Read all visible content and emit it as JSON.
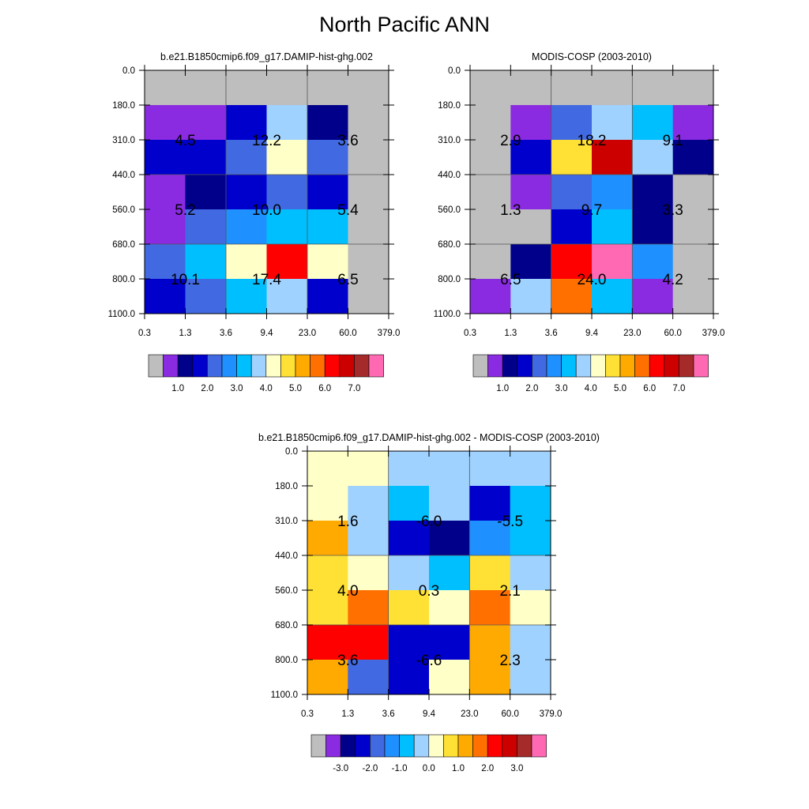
{
  "title": "North Pacific ANN",
  "colors": {
    "missing": "#BEBEBE",
    "grid": "#555555",
    "axis": "#000000",
    "palette": [
      "#BEBEBE",
      "#8A2BE2",
      "#00008B",
      "#0000CD",
      "#4169E1",
      "#1E90FF",
      "#00BFFF",
      "#A0D2FF",
      "#FFFFC8",
      "#FFE135",
      "#FFAA00",
      "#FF7000",
      "#FF0000",
      "#CD0000",
      "#A52A2A",
      "#FF69B4"
    ]
  },
  "chart_data": [
    {
      "type": "heatmap",
      "title": "b.e21.B1850cmip6.f09_g17.DAMIP-hist-ghg.002",
      "xticks": [
        "0.3",
        "1.3",
        "3.6",
        "9.4",
        "23.0",
        "60.0",
        "379.0"
      ],
      "yticks": [
        "0.0",
        "180.0",
        "310.0",
        "440.0",
        "560.0",
        "680.0",
        "800.0",
        "1100.0"
      ],
      "cells": [
        [
          0,
          0,
          0,
          0,
          0,
          0
        ],
        [
          1,
          1,
          3,
          7,
          2,
          0
        ],
        [
          3,
          3,
          4,
          8,
          4,
          0
        ],
        [
          1,
          2,
          3,
          4,
          3,
          0
        ],
        [
          1,
          4,
          5,
          6,
          6,
          0
        ],
        [
          4,
          6,
          8,
          12,
          8,
          0
        ],
        [
          3,
          4,
          6,
          7,
          3,
          0
        ]
      ],
      "annotations": [
        {
          "row": 1,
          "col": 0,
          "text": "4.5"
        },
        {
          "row": 1,
          "col": 2,
          "text": "12.2"
        },
        {
          "row": 1,
          "col": 4,
          "text": "3.6"
        },
        {
          "row": 3,
          "col": 0,
          "text": "5.2"
        },
        {
          "row": 3,
          "col": 2,
          "text": "10.0"
        },
        {
          "row": 3,
          "col": 4,
          "text": "5.4"
        },
        {
          "row": 5,
          "col": 0,
          "text": "10.1"
        },
        {
          "row": 5,
          "col": 2,
          "text": "17.4"
        },
        {
          "row": 5,
          "col": 4,
          "text": "6.5"
        }
      ],
      "colorbar": {
        "labels": [
          "1.0",
          "2.0",
          "3.0",
          "4.0",
          "5.0",
          "6.0",
          "7.0"
        ]
      }
    },
    {
      "type": "heatmap",
      "title": "MODIS-COSP (2003-2010)",
      "xticks": [
        "0.3",
        "1.3",
        "3.6",
        "9.4",
        "23.0",
        "60.0",
        "379.0"
      ],
      "yticks": [
        "0.0",
        "180.0",
        "310.0",
        "440.0",
        "560.0",
        "680.0",
        "800.0",
        "1100.0"
      ],
      "cells": [
        [
          0,
          0,
          0,
          0,
          0,
          0
        ],
        [
          0,
          1,
          4,
          7,
          6,
          1
        ],
        [
          0,
          3,
          9,
          13,
          7,
          2
        ],
        [
          0,
          1,
          4,
          5,
          2,
          0
        ],
        [
          0,
          0,
          3,
          6,
          2,
          0
        ],
        [
          0,
          2,
          12,
          15,
          5,
          0
        ],
        [
          1,
          7,
          11,
          6,
          1,
          0
        ]
      ],
      "annotations": [
        {
          "row": 1,
          "col": 0,
          "text": "2.9"
        },
        {
          "row": 1,
          "col": 2,
          "text": "18.2"
        },
        {
          "row": 1,
          "col": 4,
          "text": "9.1"
        },
        {
          "row": 3,
          "col": 0,
          "text": "1.3"
        },
        {
          "row": 3,
          "col": 2,
          "text": "9.7"
        },
        {
          "row": 3,
          "col": 4,
          "text": "3.3"
        },
        {
          "row": 5,
          "col": 0,
          "text": "6.5"
        },
        {
          "row": 5,
          "col": 2,
          "text": "24.0"
        },
        {
          "row": 5,
          "col": 4,
          "text": "4.2"
        }
      ],
      "colorbar": {
        "labels": [
          "1.0",
          "2.0",
          "3.0",
          "4.0",
          "5.0",
          "6.0",
          "7.0"
        ]
      }
    },
    {
      "type": "heatmap",
      "title": "b.e21.B1850cmip6.f09_g17.DAMIP-hist-ghg.002 - MODIS-COSP (2003-2010)",
      "xticks": [
        "0.3",
        "1.3",
        "3.6",
        "9.4",
        "23.0",
        "60.0",
        "379.0"
      ],
      "yticks": [
        "0.0",
        "180.0",
        "310.0",
        "440.0",
        "560.0",
        "680.0",
        "800.0",
        "1100.0"
      ],
      "cells": [
        [
          8,
          8,
          7,
          7,
          7,
          7
        ],
        [
          8,
          7,
          6,
          7,
          3,
          6
        ],
        [
          10,
          7,
          3,
          2,
          5,
          6
        ],
        [
          9,
          8,
          7,
          6,
          9,
          7
        ],
        [
          9,
          11,
          9,
          8,
          11,
          8
        ],
        [
          12,
          12,
          3,
          3,
          10,
          7
        ],
        [
          10,
          4,
          3,
          8,
          10,
          7
        ]
      ],
      "annotations": [
        {
          "row": 1,
          "col": 0,
          "text": "1.6"
        },
        {
          "row": 1,
          "col": 2,
          "text": "-6.0"
        },
        {
          "row": 1,
          "col": 4,
          "text": "-5.5"
        },
        {
          "row": 3,
          "col": 0,
          "text": "4.0"
        },
        {
          "row": 3,
          "col": 2,
          "text": "0.3"
        },
        {
          "row": 3,
          "col": 4,
          "text": "2.1"
        },
        {
          "row": 5,
          "col": 0,
          "text": "3.6"
        },
        {
          "row": 5,
          "col": 2,
          "text": "-6.6"
        },
        {
          "row": 5,
          "col": 4,
          "text": "2.3"
        }
      ],
      "colorbar": {
        "labels": [
          "-3.0",
          "-2.0",
          "-1.0",
          "0.0",
          "1.0",
          "2.0",
          "3.0"
        ]
      }
    }
  ]
}
